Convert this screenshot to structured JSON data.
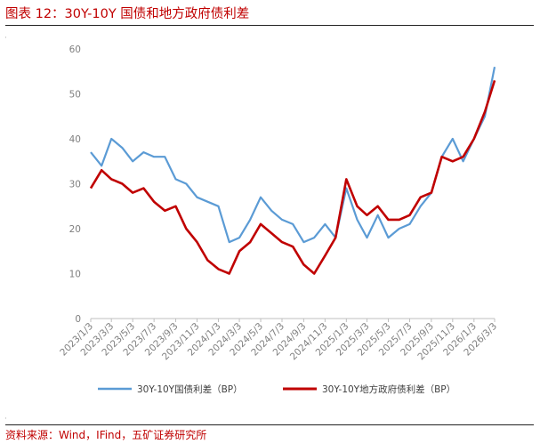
{
  "figure": {
    "title": "图表 12：30Y-10Y 国债和地方政府债利差",
    "source": "资料来源：Wind，IFind，五矿证券研究所"
  },
  "chart_data": {
    "type": "line",
    "x_tick_labels": [
      "2023/1/3",
      "2023/3/3",
      "2023/5/3",
      "2023/7/3",
      "2023/9/3",
      "2023/11/3",
      "2024/1/3",
      "2024/3/3",
      "2024/5/3",
      "2024/7/3",
      "2024/9/3",
      "2024/11/3",
      "2025/1/3",
      "2025/3/3",
      "2025/5/3",
      "2025/7/3",
      "2025/9/3",
      "2025/11/3",
      "2026/1/3",
      "2026/3/3"
    ],
    "ylim": [
      0,
      60
    ],
    "y_ticks": [
      0,
      10,
      20,
      30,
      40,
      50,
      60
    ],
    "legend_position": "bottom",
    "grid": false,
    "series": [
      {
        "name": "30Y-10Y国债利差（BP）",
        "color": "#5b9bd5",
        "x": [
          "2023/1/3",
          "2023/2/3",
          "2023/3/3",
          "2023/4/3",
          "2023/5/3",
          "2023/6/3",
          "2023/7/3",
          "2023/8/3",
          "2023/9/3",
          "2023/10/3",
          "2023/11/3",
          "2023/12/3",
          "2024/1/3",
          "2024/2/3",
          "2024/3/3",
          "2024/4/3",
          "2024/5/3",
          "2024/6/3",
          "2024/7/3",
          "2024/8/3",
          "2024/9/3",
          "2024/10/3",
          "2024/11/3",
          "2024/12/3",
          "2025/1/3",
          "2025/2/3",
          "2025/3/3",
          "2025/4/3",
          "2025/5/3",
          "2025/6/3",
          "2025/7/3",
          "2025/8/3",
          "2025/9/3",
          "2025/10/3",
          "2025/11/3",
          "2025/12/3",
          "2026/1/3",
          "2026/2/3",
          "2026/3/3"
        ],
        "values": [
          37,
          34,
          40,
          38,
          35,
          37,
          36,
          36,
          31,
          30,
          27,
          26,
          25,
          17,
          18,
          22,
          27,
          24,
          22,
          21,
          17,
          18,
          21,
          18,
          29,
          22,
          18,
          23,
          18,
          20,
          21,
          25,
          28,
          36,
          40,
          35,
          40,
          45,
          56
        ]
      },
      {
        "name": "30Y-10Y地方政府债利差（BP）",
        "color": "#c00000",
        "x": [
          "2023/1/3",
          "2023/2/3",
          "2023/3/3",
          "2023/4/3",
          "2023/5/3",
          "2023/6/3",
          "2023/7/3",
          "2023/8/3",
          "2023/9/3",
          "2023/10/3",
          "2023/11/3",
          "2023/12/3",
          "2024/1/3",
          "2024/2/3",
          "2024/3/3",
          "2024/4/3",
          "2024/5/3",
          "2024/6/3",
          "2024/7/3",
          "2024/8/3",
          "2024/9/3",
          "2024/10/3",
          "2024/11/3",
          "2024/12/3",
          "2025/1/3",
          "2025/2/3",
          "2025/3/3",
          "2025/4/3",
          "2025/5/3",
          "2025/6/3",
          "2025/7/3",
          "2025/8/3",
          "2025/9/3",
          "2025/10/3",
          "2025/11/3",
          "2025/12/3",
          "2026/1/3",
          "2026/2/3",
          "2026/3/3"
        ],
        "values": [
          29,
          33,
          31,
          30,
          28,
          29,
          26,
          24,
          25,
          20,
          17,
          13,
          11,
          10,
          15,
          17,
          21,
          19,
          17,
          16,
          12,
          10,
          14,
          18,
          31,
          25,
          23,
          25,
          22,
          22,
          23,
          27,
          28,
          36,
          35,
          36,
          40,
          46,
          53
        ]
      }
    ]
  }
}
